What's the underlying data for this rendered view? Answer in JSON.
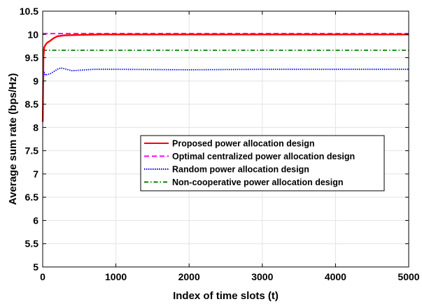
{
  "chart_data": {
    "type": "line",
    "title": "",
    "xlabel": "Index of time slots (t)",
    "ylabel": "Average sum rate (bps/Hz)",
    "xlim": [
      0,
      5000
    ],
    "ylim": [
      5,
      10.5
    ],
    "xticks": [
      0,
      1000,
      2000,
      3000,
      4000,
      5000
    ],
    "xtick_labels": [
      "0",
      "1000",
      "2000",
      "3000",
      "4000",
      "5000"
    ],
    "yticks": [
      5,
      5.5,
      6,
      6.5,
      7,
      7.5,
      8,
      8.5,
      9,
      9.5,
      10,
      10.5
    ],
    "ytick_labels": [
      "5",
      "5.5",
      "6",
      "6.5",
      "7",
      "7.5",
      "8",
      "8.5",
      "9",
      "9.5",
      "10",
      "10.5"
    ],
    "grid": true,
    "legend_position": "center-right",
    "series": [
      {
        "name": "Proposed power allocation design",
        "color": "#ff0000",
        "style": "solid",
        "x": [
          1,
          10,
          20,
          40,
          60,
          100,
          150,
          200,
          300,
          500,
          800,
          1500,
          3000,
          5000
        ],
        "y": [
          8.12,
          9.5,
          9.72,
          9.78,
          9.82,
          9.86,
          9.92,
          9.96,
          9.98,
          9.99,
          10.0,
          10.0,
          10.0,
          10.0
        ]
      },
      {
        "name": "Optimal centralized power allocation design",
        "color": "#ff00ff",
        "style": "dashed",
        "x": [
          0,
          5000
        ],
        "y": [
          10.02,
          10.02
        ]
      },
      {
        "name": "Random power allocation design",
        "color": "#0000ff",
        "style": "dotted",
        "x": [
          1,
          10,
          20,
          40,
          60,
          100,
          150,
          200,
          250,
          300,
          400,
          500,
          700,
          1000,
          2000,
          3000,
          4000,
          5000
        ],
        "y": [
          8.95,
          9.05,
          9.18,
          9.12,
          9.14,
          9.15,
          9.2,
          9.25,
          9.28,
          9.26,
          9.22,
          9.23,
          9.25,
          9.25,
          9.24,
          9.25,
          9.25,
          9.25
        ]
      },
      {
        "name": "Non-cooperative power allocation design",
        "color": "#008000",
        "style": "dashdot",
        "x": [
          0,
          5000
        ],
        "y": [
          9.66,
          9.66
        ]
      }
    ]
  }
}
